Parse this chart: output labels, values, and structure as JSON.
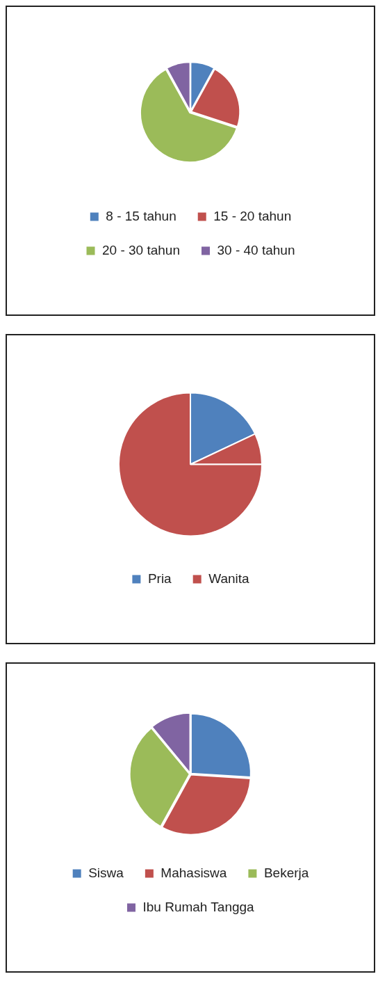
{
  "chart_data": [
    {
      "type": "pie",
      "categories": [
        "8 - 15 tahun",
        "15 - 20 tahun",
        "20 - 30 tahun",
        "30 - 40 tahun"
      ],
      "values": [
        8,
        22,
        62,
        8
      ],
      "colors": [
        "#4f81bd",
        "#c0504d",
        "#9bbb59",
        "#8064a2"
      ],
      "legend": "bottom"
    },
    {
      "type": "pie",
      "categories": [
        "Pria",
        "Wanita",
        null
      ],
      "values": [
        18,
        7,
        75
      ],
      "colors": [
        "#4f81bd",
        "#c0504d",
        "#c0504d"
      ],
      "legend": "bottom"
    },
    {
      "type": "pie",
      "categories": [
        "Siswa",
        "Mahasiswa",
        "Bekerja",
        "Ibu Rumah Tangga"
      ],
      "values": [
        26,
        32,
        31,
        11
      ],
      "colors": [
        "#4f81bd",
        "#c0504d",
        "#9bbb59",
        "#8064a2"
      ],
      "legend": "bottom"
    }
  ]
}
